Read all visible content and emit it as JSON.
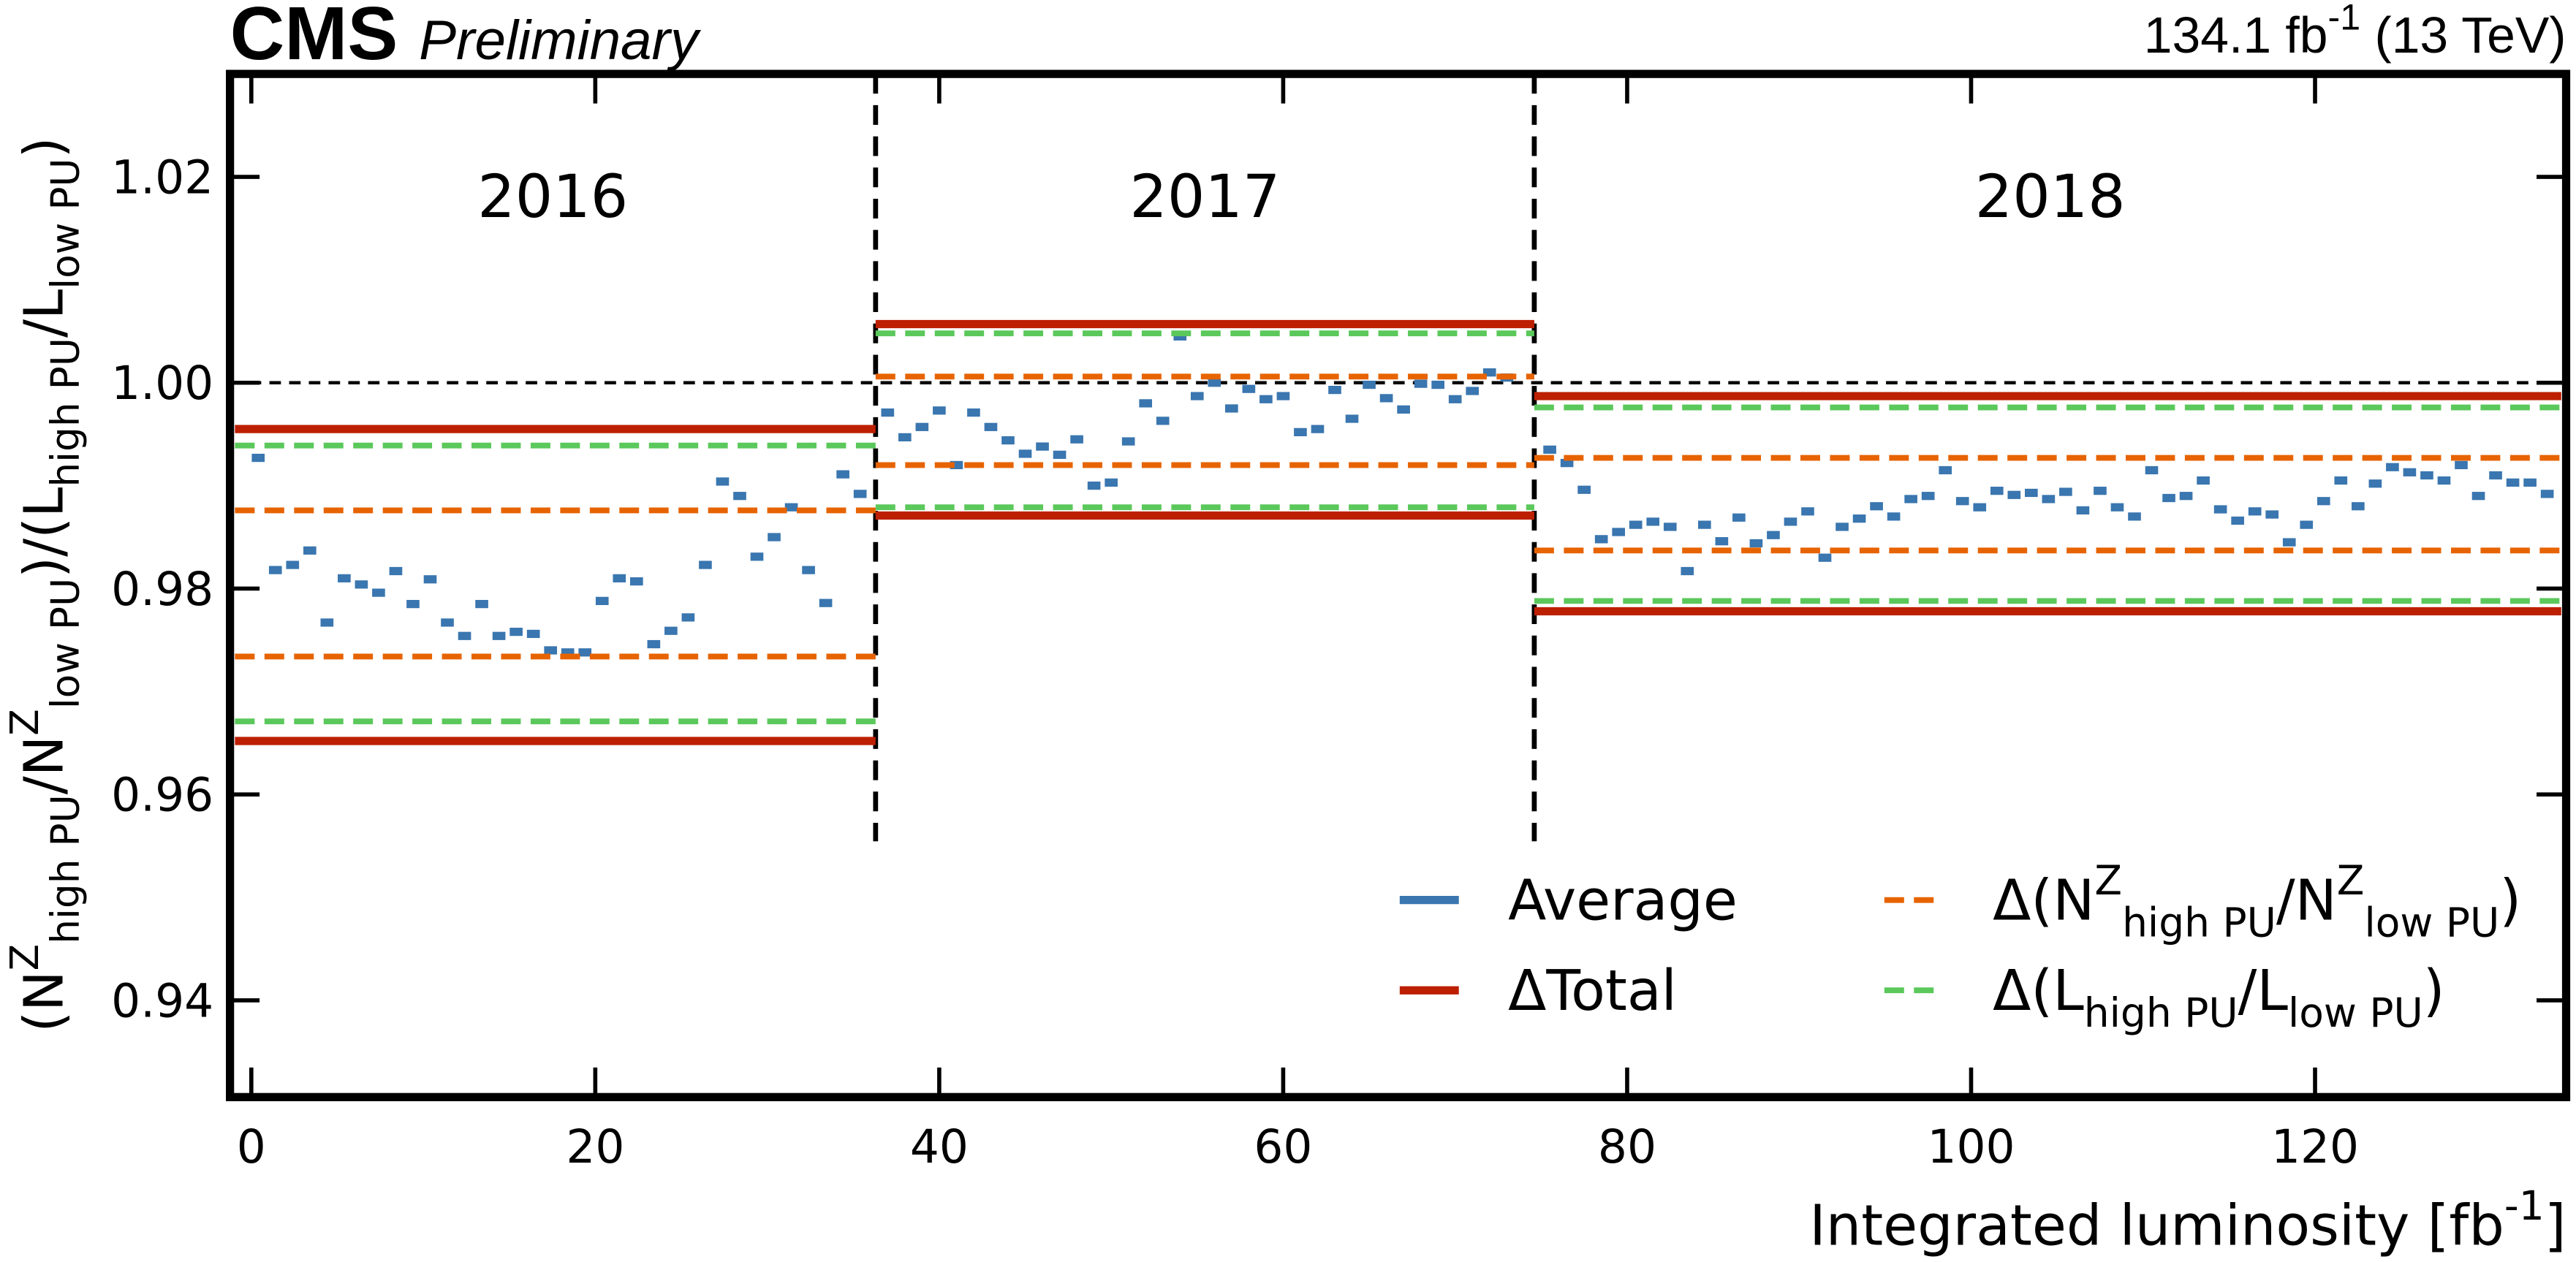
{
  "chart_data": {
    "type": "band_summary",
    "experiment": "CMS",
    "status": "Preliminary",
    "lumi_label": "134.1 fb^{-1} (13 TeV)",
    "x_label": "Integrated luminosity [fb^{-1}]",
    "y_label": "(N^{Z}_{high PU}/N^{Z}_{low PU})/(L_{high PU}/L_{low PU})",
    "xlim": [
      -1.24,
      134.6
    ],
    "ylim": [
      0.9306,
      1.03
    ],
    "xticks": [
      0,
      20,
      40,
      60,
      80,
      100,
      120
    ],
    "yticks": [
      0.94,
      0.96,
      0.98,
      {
        "value": 1,
        "label": "1.00"
      },
      1.02
    ],
    "reference_line": 1,
    "periods": [
      "2016",
      "2017",
      "2018"
    ],
    "boundaries": [
      36.3,
      74.6
    ],
    "legend": "lower right",
    "series": [
      {
        "name": "Average",
        "color": "#3a76af",
        "style": "marker",
        "x": [
          0.4,
          1.4,
          2.4,
          3.4,
          4.4,
          5.4,
          6.4,
          7.4,
          8.4,
          9.4,
          10.4,
          11.4,
          12.4,
          13.4,
          14.4,
          15.4,
          16.4,
          17.4,
          18.4,
          19.4,
          20.4,
          21.4,
          22.4,
          23.4,
          24.4,
          25.4,
          26.4,
          27.4,
          28.4,
          29.4,
          30.4,
          31.4,
          32.4,
          33.4,
          34.4,
          35.4,
          37,
          38,
          39,
          40,
          41,
          42,
          43,
          44,
          45,
          46,
          47,
          48,
          49,
          50,
          51,
          52,
          53,
          54,
          55,
          56,
          57,
          58,
          59,
          60,
          61,
          62,
          63,
          64,
          65,
          66,
          67,
          68,
          69,
          70,
          71,
          72,
          73,
          75.5,
          76.5,
          77.5,
          78.5,
          79.5,
          80.5,
          81.5,
          82.5,
          83.5,
          84.5,
          85.5,
          86.5,
          87.5,
          88.5,
          89.5,
          90.5,
          91.5,
          92.5,
          93.5,
          94.5,
          95.5,
          96.5,
          97.5,
          98.5,
          99.5,
          100.5,
          101.5,
          102.5,
          103.5,
          104.5,
          105.5,
          106.5,
          107.5,
          108.5,
          109.5,
          110.5,
          111.5,
          112.5,
          113.5,
          114.5,
          115.5,
          116.5,
          117.5,
          118.5,
          119.5,
          120.5,
          121.5,
          122.5,
          123.5,
          124.5,
          125.5,
          126.5,
          127.5,
          128.5,
          129.5,
          130.5,
          131.5,
          132.5,
          133.5
        ],
        "values": [
          0.9927,
          0.9818,
          0.9823,
          0.9837,
          0.9767,
          0.981,
          0.9804,
          0.9796,
          0.9817,
          0.9785,
          0.9809,
          0.9767,
          0.9754,
          0.9785,
          0.9754,
          0.9758,
          0.9756,
          0.974,
          0.9738,
          0.9738,
          0.9788,
          0.981,
          0.9807,
          0.9746,
          0.9759,
          0.9772,
          0.9823,
          0.9904,
          0.989,
          0.9831,
          0.985,
          0.9879,
          0.9818,
          0.9786,
          0.9911,
          0.9892,
          0.9971,
          0.9947,
          0.9957,
          0.9973,
          0.992,
          0.9971,
          0.9957,
          0.9944,
          0.9931,
          0.9938,
          0.993,
          0.9945,
          0.99,
          0.9903,
          0.9943,
          0.998,
          0.9963,
          1.0045,
          0.9987,
          1.0,
          0.9975,
          0.9994,
          0.9984,
          0.9987,
          0.9952,
          0.9955,
          0.9993,
          0.9965,
          0.9998,
          0.9985,
          0.9974,
          0.9999,
          0.9998,
          0.9984,
          0.9992,
          1.001,
          1.0005,
          0.9935,
          0.9922,
          0.9896,
          0.9848,
          0.9855,
          0.9862,
          0.9865,
          0.986,
          0.9817,
          0.9862,
          0.9846,
          0.9869,
          0.9844,
          0.9852,
          0.9865,
          0.9875,
          0.983,
          0.986,
          0.9868,
          0.988,
          0.987,
          0.9887,
          0.989,
          0.9915,
          0.9885,
          0.9879,
          0.9895,
          0.9891,
          0.9893,
          0.9887,
          0.9894,
          0.9876,
          0.9895,
          0.9879,
          0.987,
          0.9915,
          0.9888,
          0.989,
          0.9905,
          0.9877,
          0.9866,
          0.9875,
          0.9872,
          0.9845,
          0.9862,
          0.9885,
          0.9905,
          0.988,
          0.9902,
          0.9918,
          0.9913,
          0.991,
          0.9905,
          0.992,
          0.989,
          0.991,
          0.9903,
          0.9903,
          0.9892
        ]
      },
      {
        "name": "ΔTotal",
        "color": "#bd1f01",
        "style": "solid",
        "values": [
          [
            0.9652,
            0.9955
          ],
          [
            0.9871,
            1.0057
          ],
          [
            0.9778,
            0.9987
          ]
        ]
      },
      {
        "name": "Δ(N^{Z}_{high PU}/N^{Z}_{low PU})",
        "color": "#e76300",
        "style": "dashed",
        "values": [
          [
            0.9734,
            0.9876
          ],
          [
            0.992,
            1.0006
          ],
          [
            0.9837,
            0.9927
          ]
        ]
      },
      {
        "name": "Δ(L_{high PU}/L_{low PU})",
        "color": "#5bc85b",
        "style": "dashed",
        "values": [
          [
            0.9671,
            0.9939
          ],
          [
            0.9879,
            1.0048
          ],
          [
            0.9788,
            0.9976
          ]
        ]
      }
    ]
  }
}
